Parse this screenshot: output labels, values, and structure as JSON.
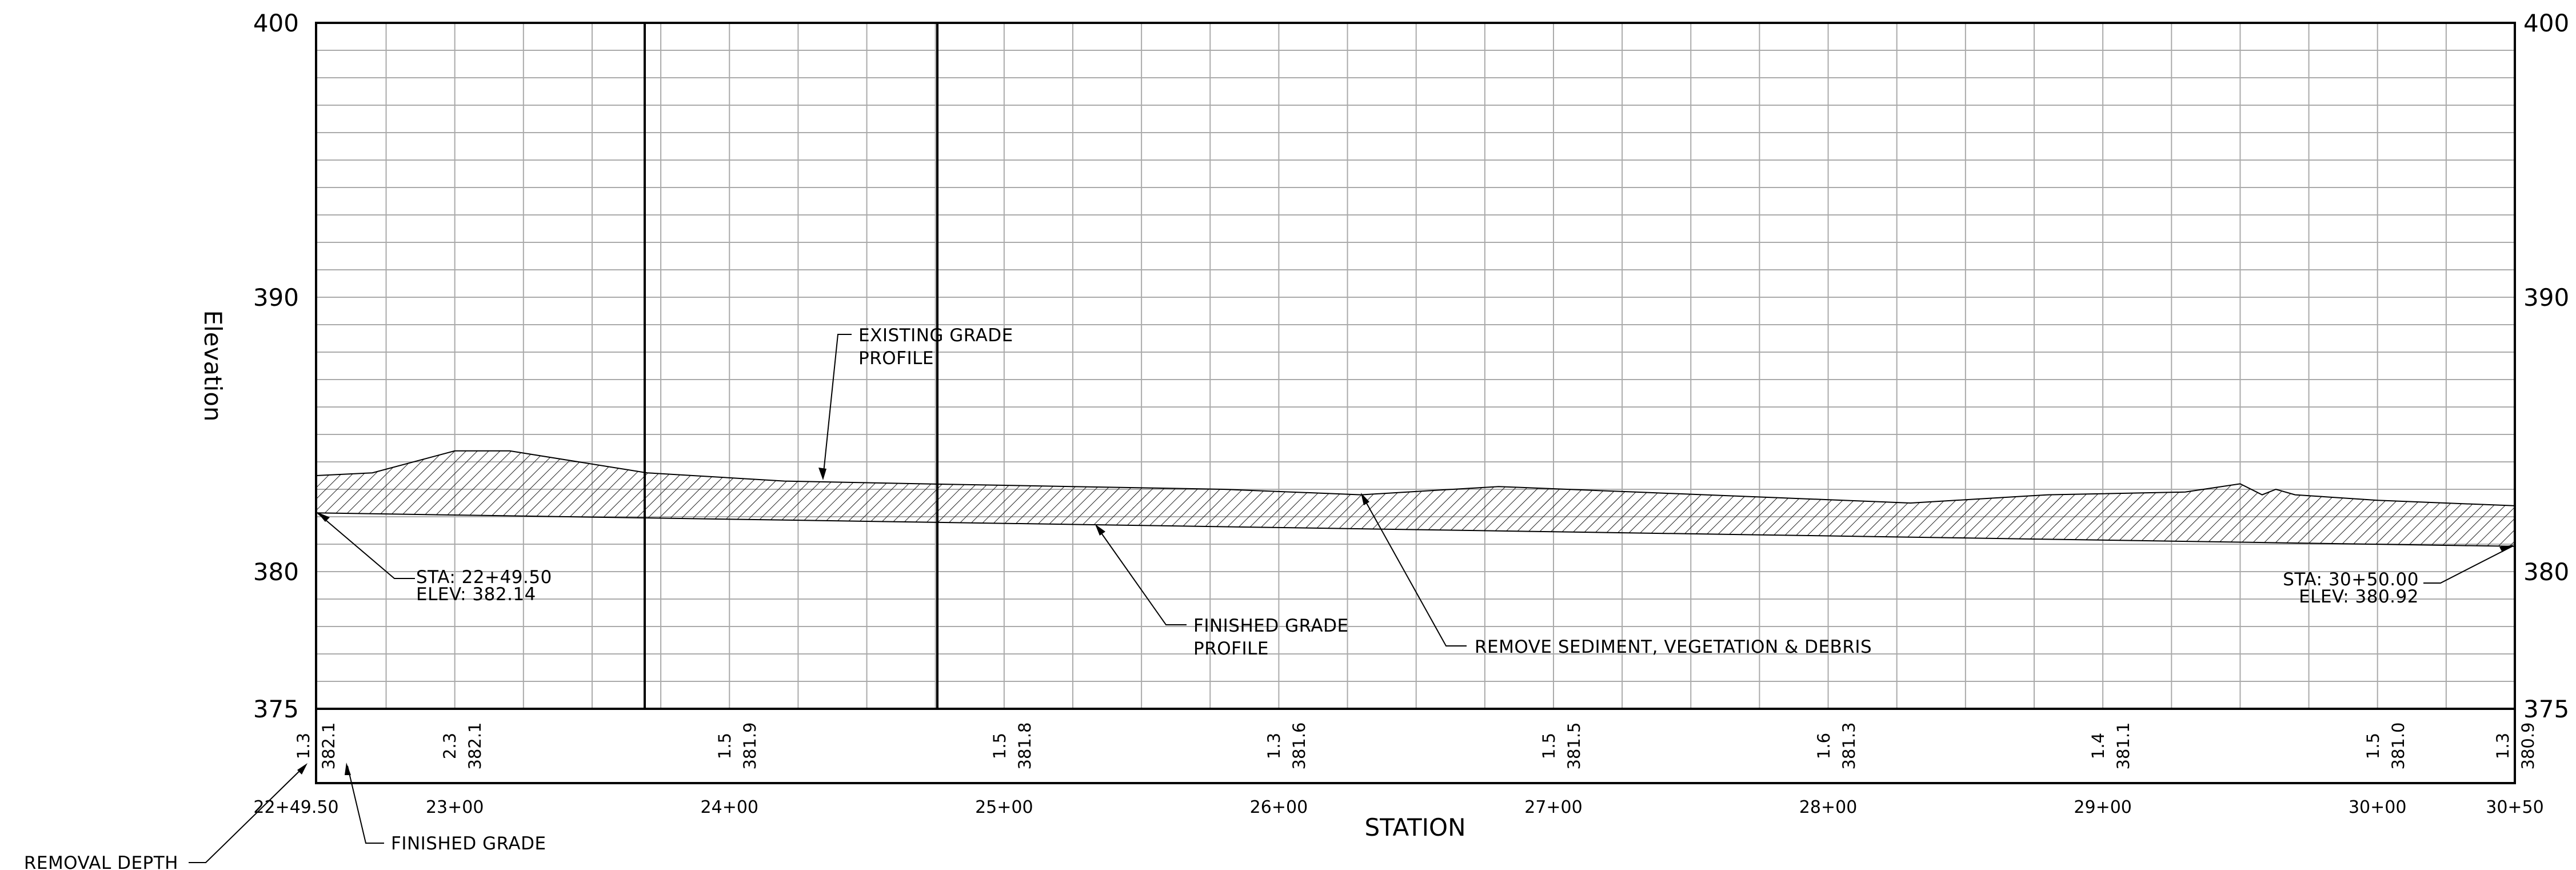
{
  "axis": {
    "y_title": "Elevation",
    "x_title": "STATION",
    "y_ticks": [
      "375",
      "380",
      "390",
      "400"
    ],
    "x_ticks": [
      "22+49.50",
      "23+00",
      "24+00",
      "25+00",
      "26+00",
      "27+00",
      "28+00",
      "29+00",
      "30+00",
      "30+50"
    ],
    "ylim": [
      375,
      400
    ]
  },
  "annotations": {
    "existing_grade_line1": "EXISTING GRADE",
    "existing_grade_line2": "PROFILE",
    "finished_grade_line1": "FINISHED GRADE",
    "finished_grade_line2": "PROFILE",
    "remove_note": "REMOVE SEDIMENT, VEGETATION & DEBRIS",
    "start_sta": "STA: 22+49.50",
    "start_elev": "ELEV: 382.14",
    "end_sta": "STA: 30+50.00",
    "end_elev": "ELEV: 380.92"
  },
  "legend": {
    "removal_depth": "REMOVAL DEPTH",
    "finished_grade": "FINISHED GRADE"
  },
  "value_columns": [
    {
      "depth": "1.3",
      "elev": "382.1"
    },
    {
      "depth": "2.3",
      "elev": "382.1"
    },
    {
      "depth": "1.5",
      "elev": "381.9"
    },
    {
      "depth": "1.5",
      "elev": "381.8"
    },
    {
      "depth": "1.3",
      "elev": "381.6"
    },
    {
      "depth": "1.5",
      "elev": "381.5"
    },
    {
      "depth": "1.6",
      "elev": "381.3"
    },
    {
      "depth": "1.4",
      "elev": "381.1"
    },
    {
      "depth": "1.5",
      "elev": "381.0"
    },
    {
      "depth": "1.3",
      "elev": "380.9"
    }
  ],
  "chart_data": {
    "type": "area",
    "x_unit": "station (ft)",
    "xlim": [
      2249.5,
      3050
    ],
    "ylim": [
      375,
      400
    ],
    "series": [
      {
        "x": [
          2249.5,
          2270,
          2300,
          2320,
          2370,
          2420,
          2470,
          2525,
          2580,
          2630,
          2680,
          2730,
          2780,
          2830,
          2880,
          2930,
          2950,
          2958,
          2963,
          2970,
          3000,
          3050
        ],
        "values": [
          383.5,
          383.6,
          384.4,
          384.4,
          383.6,
          383.3,
          383.2,
          383.1,
          383.0,
          382.8,
          383.1,
          382.9,
          382.7,
          382.5,
          382.8,
          382.9,
          383.2,
          382.8,
          383.0,
          382.8,
          382.6,
          382.4
        ]
      },
      {
        "x": [
          2249.5,
          3050
        ],
        "values": [
          382.14,
          380.92
        ]
      }
    ]
  }
}
